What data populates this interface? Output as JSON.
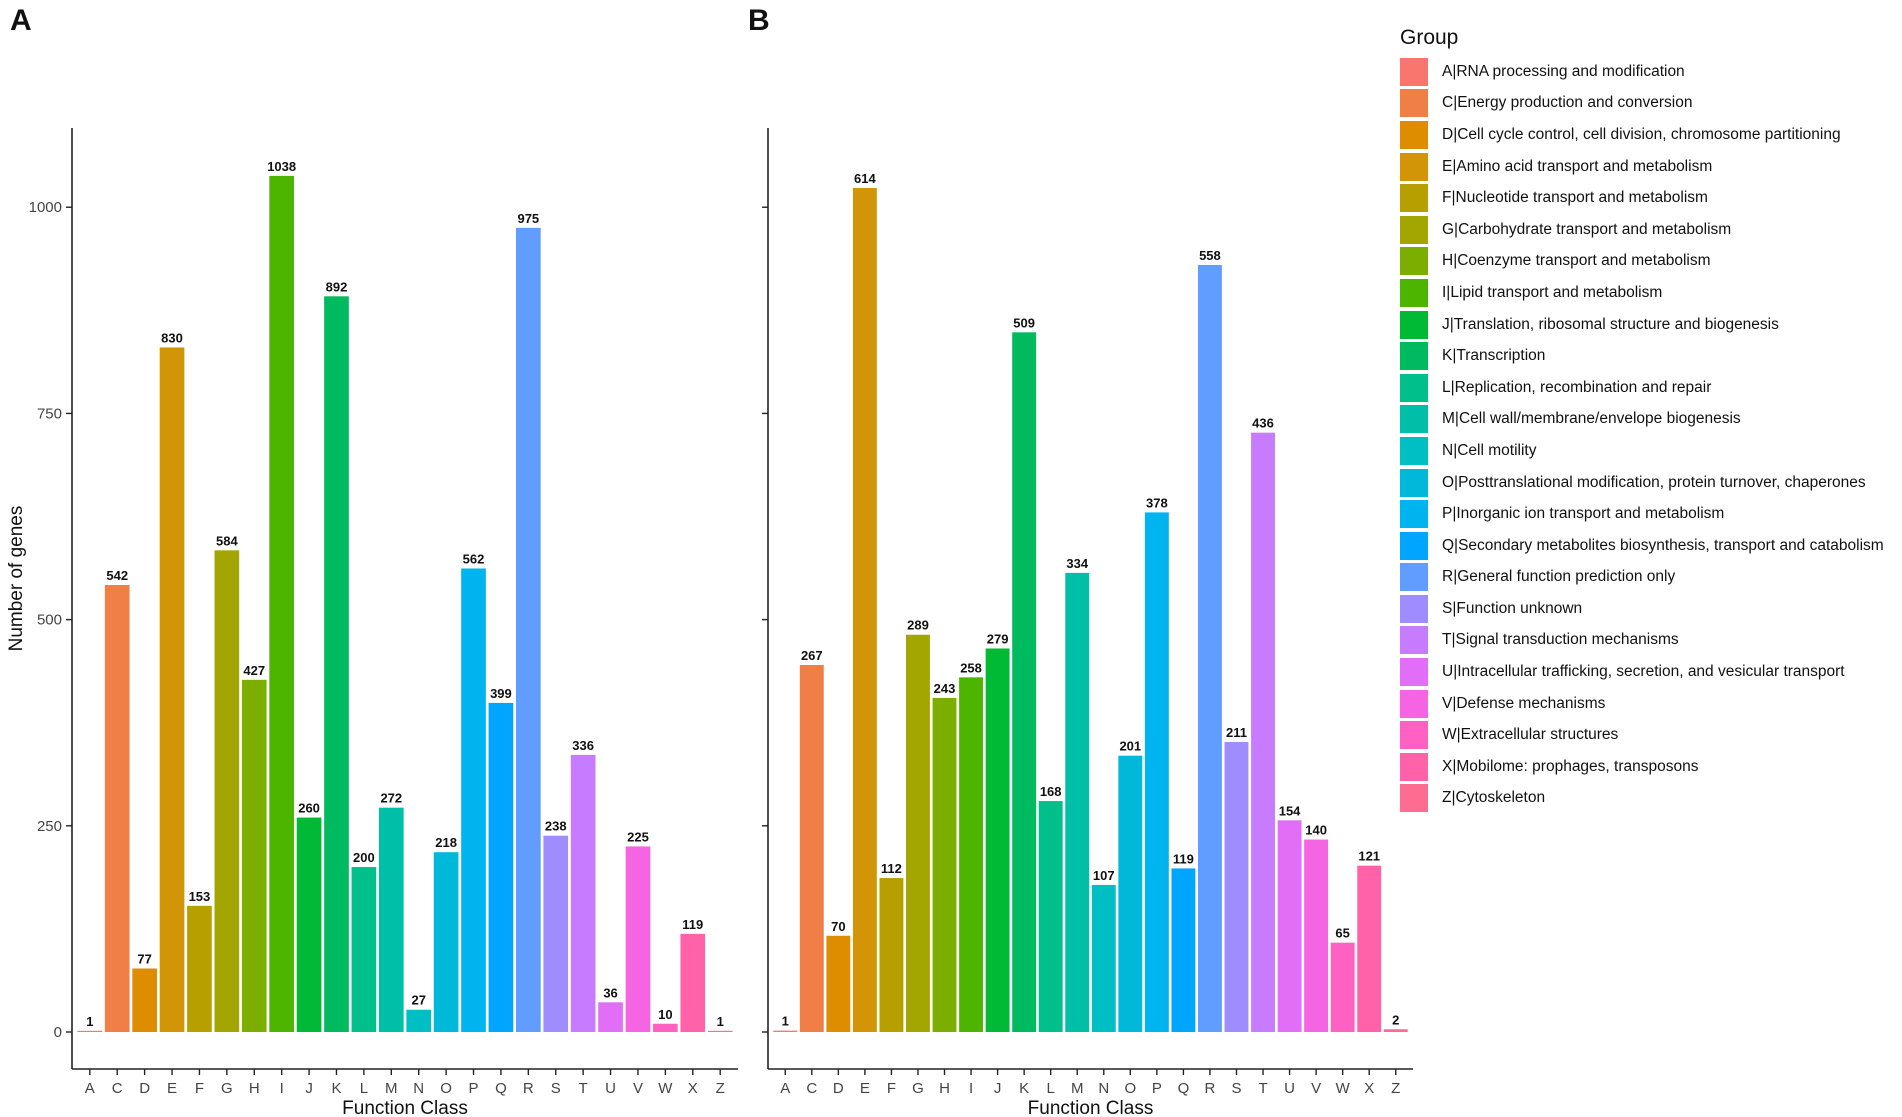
{
  "panels": {
    "a_label": "A",
    "b_label": "B"
  },
  "legend": {
    "title": "Group",
    "items": [
      {
        "label": "A|RNA processing and modification",
        "color": "#F8766D"
      },
      {
        "label": "C|Energy production and conversion",
        "color": "#EF7F46"
      },
      {
        "label": "D|Cell cycle control, cell division, chromosome partitioning",
        "color": "#DE8C00"
      },
      {
        "label": "E|Amino acid transport and metabolism",
        "color": "#D29508"
      },
      {
        "label": "F|Nucleotide transport and metabolism",
        "color": "#B79F00"
      },
      {
        "label": "G|Carbohydrate transport and metabolism",
        "color": "#A3A500"
      },
      {
        "label": "H|Coenzyme transport and metabolism",
        "color": "#7CAE00"
      },
      {
        "label": "I|Lipid transport and metabolism",
        "color": "#4DB400"
      },
      {
        "label": "J|Translation, ribosomal structure and biogenesis",
        "color": "#00B935"
      },
      {
        "label": "K|Transcription",
        "color": "#00BA5F"
      },
      {
        "label": "L|Replication, recombination and repair",
        "color": "#00BF8A"
      },
      {
        "label": "M|Cell wall/membrane/envelope biogenesis",
        "color": "#00BFA9"
      },
      {
        "label": "N|Cell motility",
        "color": "#00BFC4"
      },
      {
        "label": "O|Posttranslational modification, protein turnover, chaperones",
        "color": "#00B8D9"
      },
      {
        "label": "P|Inorganic ion transport and metabolism",
        "color": "#00B4EF"
      },
      {
        "label": "Q|Secondary metabolites biosynthesis, transport and catabolism",
        "color": "#00A5FF"
      },
      {
        "label": "R|General function prediction only",
        "color": "#619CFF"
      },
      {
        "label": "S|Function unknown",
        "color": "#9F8CFF"
      },
      {
        "label": "T|Signal transduction mechanisms",
        "color": "#C77CFF"
      },
      {
        "label": "U|Intracellular trafficking, secretion, and vesicular transport",
        "color": "#E26EF7"
      },
      {
        "label": "V|Defense mechanisms",
        "color": "#F564E3"
      },
      {
        "label": "W|Extracellular structures",
        "color": "#FF61C3"
      },
      {
        "label": "X|Mobilome: prophages, transposons",
        "color": "#FF62A8"
      },
      {
        "label": "Z|Cytoskeleton",
        "color": "#FF6C91"
      }
    ]
  },
  "chart_data": [
    {
      "type": "bar",
      "panel": "A",
      "title": "",
      "xlabel": "Function Class",
      "ylabel": "Number of genes",
      "ylim": [
        0,
        1090
      ],
      "yticks": [
        0,
        250,
        500,
        750,
        1000
      ],
      "show_y_tick_labels": true,
      "categories": [
        "A",
        "C",
        "D",
        "E",
        "F",
        "G",
        "H",
        "I",
        "J",
        "K",
        "L",
        "M",
        "N",
        "O",
        "P",
        "Q",
        "R",
        "S",
        "T",
        "U",
        "V",
        "W",
        "X",
        "Z"
      ],
      "values": [
        1,
        542,
        77,
        830,
        153,
        584,
        427,
        1038,
        260,
        892,
        200,
        272,
        27,
        218,
        562,
        399,
        975,
        238,
        336,
        36,
        225,
        10,
        119,
        1
      ]
    },
    {
      "type": "bar",
      "panel": "B",
      "title": "",
      "xlabel": "Function Class",
      "ylabel": "",
      "ylim": [
        0,
        654
      ],
      "yticks": [
        0,
        150,
        300,
        450,
        600
      ],
      "show_y_tick_labels": false,
      "categories": [
        "A",
        "C",
        "D",
        "E",
        "F",
        "G",
        "H",
        "I",
        "J",
        "K",
        "L",
        "M",
        "N",
        "O",
        "P",
        "Q",
        "R",
        "S",
        "T",
        "U",
        "V",
        "W",
        "X",
        "Z"
      ],
      "values": [
        1,
        267,
        70,
        614,
        112,
        289,
        243,
        258,
        279,
        509,
        168,
        334,
        107,
        201,
        378,
        119,
        558,
        211,
        436,
        154,
        140,
        65,
        121,
        2
      ]
    }
  ]
}
